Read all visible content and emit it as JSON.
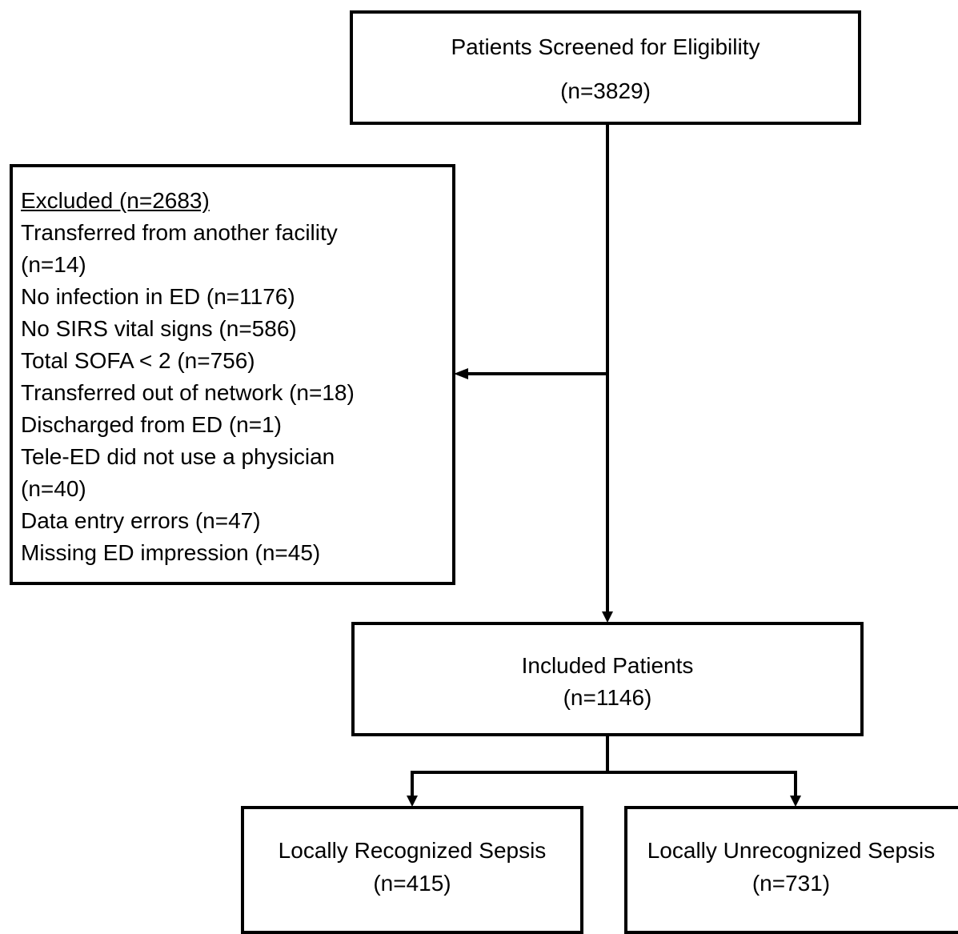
{
  "screened": {
    "title": "Patients Screened for Eligibility",
    "count": "(n=3829)"
  },
  "excluded": {
    "header": "Excluded (n=2683)",
    "lines": [
      "Transferred from another facility",
      "(n=14)",
      "No infection in ED (n=1176)",
      "No SIRS vital signs (n=586)",
      "Total SOFA < 2 (n=756)",
      "Transferred out of network (n=18)",
      "Discharged from ED (n=1)",
      "Tele-ED did not use a physician",
      "(n=40)",
      "Data entry errors (n=47)",
      "Missing ED impression (n=45)"
    ]
  },
  "included": {
    "title": "Included Patients",
    "count": "(n=1146)"
  },
  "recognized": {
    "title": "Locally Recognized Sepsis",
    "count": "(n=415)"
  },
  "unrecognized": {
    "title": "Locally Unrecognized Sepsis",
    "count": "(n=731)"
  }
}
